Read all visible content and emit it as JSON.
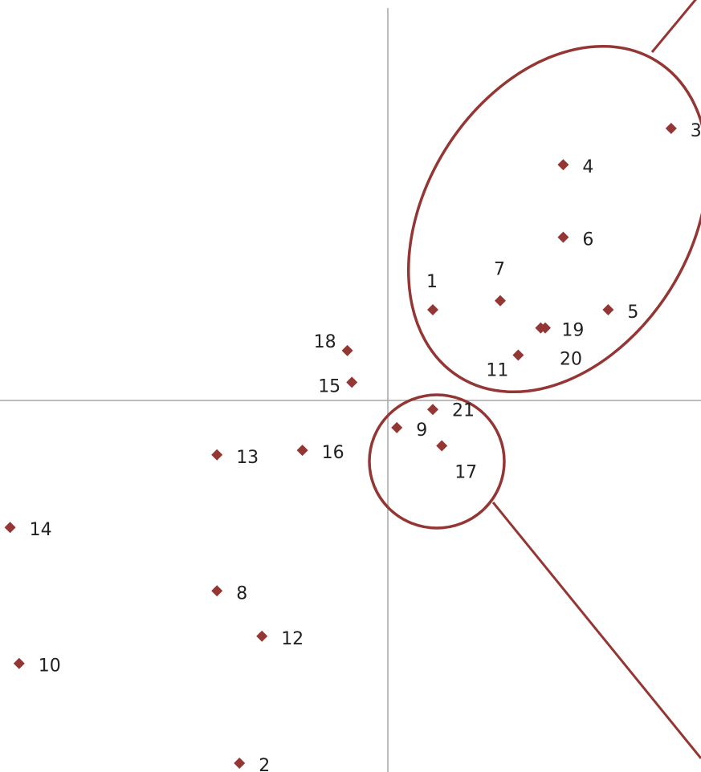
{
  "chart_data": {
    "type": "scatter",
    "title": "",
    "xlabel": "",
    "ylabel": "",
    "grid": false,
    "axes": "crossed-at-origin",
    "marker": "diamond",
    "marker_color": "#943634",
    "group_outline_color": "#943634",
    "axis_color": "#a6a6a6",
    "xlim": [
      -4.3,
      3.6
    ],
    "ylim": [
      -4.1,
      4.4
    ],
    "points": [
      {
        "label": "1",
        "x": 0.5,
        "y": 1.0
      },
      {
        "label": "2",
        "x": -1.65,
        "y": -4.0
      },
      {
        "label": "3",
        "x": 3.15,
        "y": 3.0
      },
      {
        "label": "4",
        "x": 1.95,
        "y": 2.6
      },
      {
        "label": "5",
        "x": 2.45,
        "y": 1.0
      },
      {
        "label": "6",
        "x": 1.95,
        "y": 1.8
      },
      {
        "label": "7",
        "x": 1.25,
        "y": 1.1
      },
      {
        "label": "8",
        "x": -1.9,
        "y": -2.1
      },
      {
        "label": "9",
        "x": 0.1,
        "y": -0.3
      },
      {
        "label": "10",
        "x": -4.1,
        "y": -2.9
      },
      {
        "label": "11",
        "x": 1.45,
        "y": 0.5
      },
      {
        "label": "12",
        "x": -1.4,
        "y": -2.6
      },
      {
        "label": "13",
        "x": -1.9,
        "y": -0.6
      },
      {
        "label": "14",
        "x": -4.2,
        "y": -1.4
      },
      {
        "label": "15",
        "x": -0.4,
        "y": 0.2
      },
      {
        "label": "16",
        "x": -0.95,
        "y": -0.55
      },
      {
        "label": "17",
        "x": 0.6,
        "y": -0.5
      },
      {
        "label": "18",
        "x": -0.45,
        "y": 0.55
      },
      {
        "label": "19",
        "x": 1.7,
        "y": 0.8
      },
      {
        "label": "20",
        "x": 1.75,
        "y": 0.8
      },
      {
        "label": "21",
        "x": 0.5,
        "y": -0.1
      }
    ]
  }
}
